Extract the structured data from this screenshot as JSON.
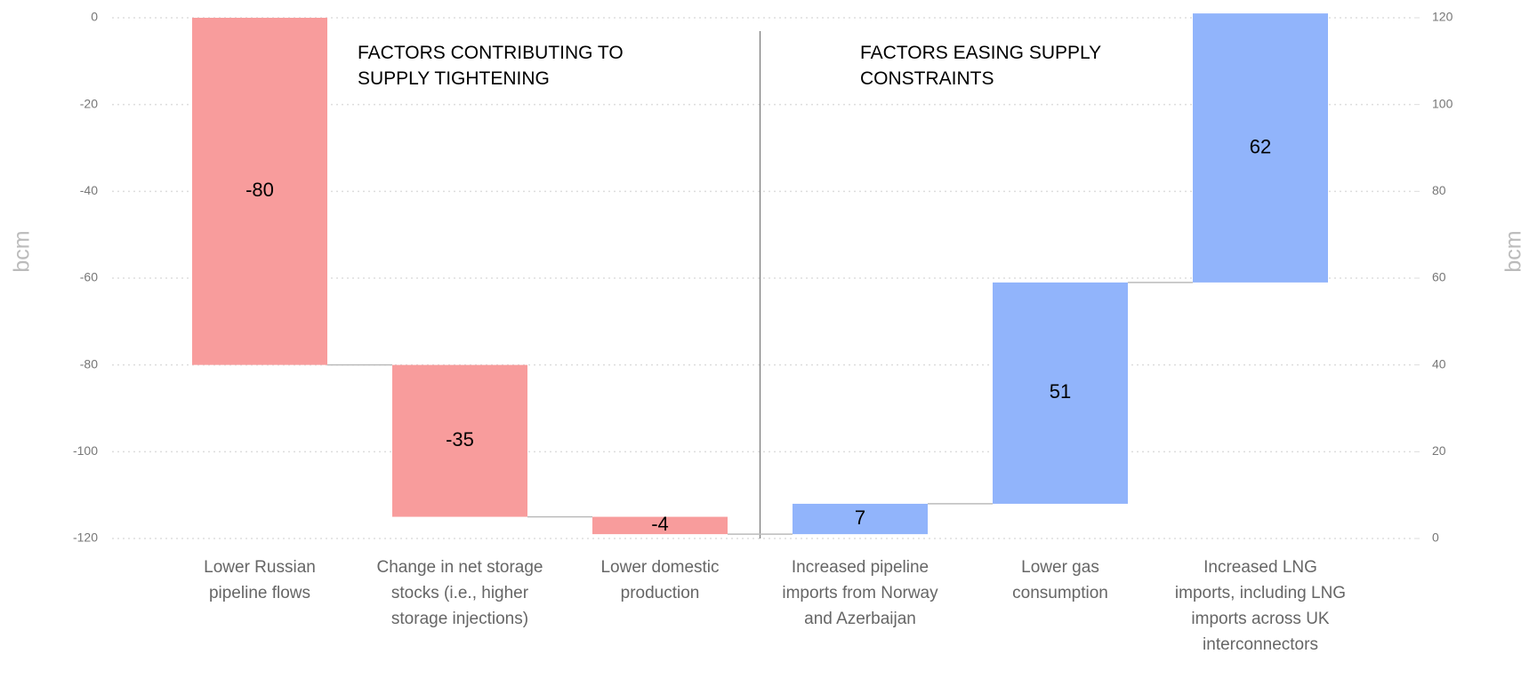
{
  "chart_data": {
    "type": "waterfall",
    "categories": [
      "Lower Russian pipeline flows",
      "Change in net storage stocks (i.e., higher storage injections)",
      "Lower domestic production",
      "Increased pipeline imports from Norway and Azerbaijan",
      "Lower gas consumption",
      "Increased LNG imports, including LNG imports across UK interconnectors"
    ],
    "values": [
      -80,
      -35,
      -4,
      7,
      51,
      62
    ],
    "colors": [
      "#f89c9c",
      "#f89c9c",
      "#f89c9c",
      "#91b4fb",
      "#91b4fb",
      "#91b4fb"
    ],
    "ylim": [
      -120,
      0
    ],
    "yticks": [
      0,
      -20,
      -40,
      -60,
      -80,
      -100,
      -120
    ],
    "y2lim": [
      0,
      120
    ],
    "y2ticks": [
      0,
      20,
      40,
      60,
      80,
      100,
      120
    ],
    "ylabel": "bcm",
    "y2label": "bcm",
    "annotations": [
      "FACTORS  CONTRIBUTING TO SUPPLY TIGHTENING",
      "FACTORS  EASING SUPPLY CONSTRAINTS"
    ],
    "grid": true
  }
}
